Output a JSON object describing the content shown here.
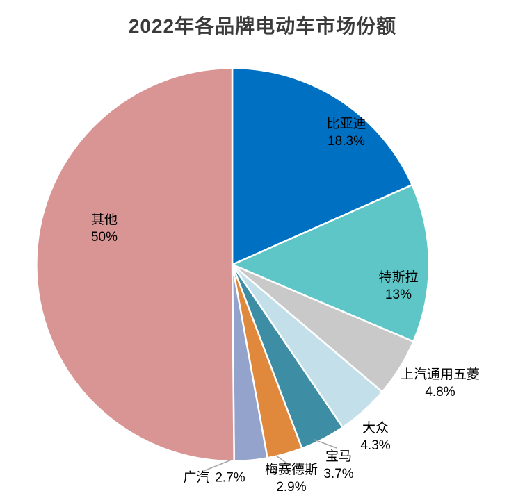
{
  "chart_data": {
    "type": "pie",
    "title": "2022年各品牌电动车市场份额",
    "slices": [
      {
        "name": "比亚迪",
        "value": 18.3,
        "value_label": "18.3%",
        "color": "#0071C2",
        "label_placement": "inside"
      },
      {
        "name": "特斯拉",
        "value": 13,
        "value_label": "13%",
        "color": "#5FC6C7",
        "label_placement": "inside"
      },
      {
        "name": "上汽通用五菱",
        "value": 4.8,
        "value_label": "4.8%",
        "color": "#C9C9C9",
        "label_placement": "outside"
      },
      {
        "name": "大众",
        "value": 4.3,
        "value_label": "4.3%",
        "color": "#C3E0EA",
        "label_placement": "outside"
      },
      {
        "name": "宝马",
        "value": 3.7,
        "value_label": "3.7%",
        "color": "#3D8EA5",
        "label_placement": "outside"
      },
      {
        "name": "梅赛德斯",
        "value": 2.9,
        "value_label": "2.9%",
        "color": "#E0883C",
        "label_placement": "outside"
      },
      {
        "name": "广汽",
        "value": 2.7,
        "value_label": "2.7%",
        "color": "#93A3CC",
        "label_placement": "outside"
      },
      {
        "name": "其他",
        "value": 50,
        "value_label": "50%",
        "color": "#D89594",
        "label_placement": "inside"
      }
    ],
    "start_angle_deg": 0,
    "direction": "clockwise",
    "slice_border_color": "#FFFFFF",
    "leader_line_color": "#A6A6A6",
    "label_text_color": "#000000",
    "background_color": "#FFFFFF",
    "legend": "none"
  }
}
